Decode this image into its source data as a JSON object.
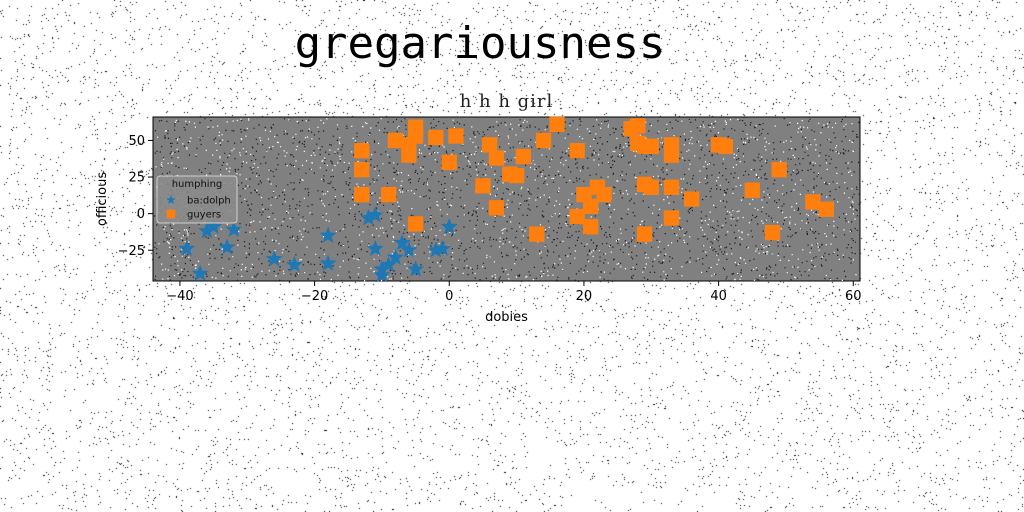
{
  "page": {
    "title": "gregariousness"
  },
  "chart_data": {
    "type": "scatter",
    "title": "h h h girl",
    "xlabel": "dobies",
    "ylabel": "officious",
    "xlim": [
      -44,
      61
    ],
    "ylim": [
      -46,
      66
    ],
    "xticks": [
      -40,
      -20,
      0,
      20,
      40,
      60
    ],
    "yticks": [
      -25,
      0,
      25,
      50
    ],
    "grid": false,
    "background": "#808080",
    "legend": {
      "title": "humphing",
      "placement": "left"
    },
    "series": [
      {
        "name": "ba:dolph",
        "marker": "star",
        "color": "#1f77b4",
        "points": [
          [
            -39,
            -24
          ],
          [
            -37,
            -41
          ],
          [
            -36,
            -12
          ],
          [
            -35,
            -9
          ],
          [
            -33,
            -23
          ],
          [
            -32,
            -11
          ],
          [
            -26,
            -31
          ],
          [
            -23,
            -35
          ],
          [
            -18,
            -15
          ],
          [
            -18,
            -34
          ],
          [
            -12,
            -3
          ],
          [
            -11,
            -1
          ],
          [
            -11,
            -24
          ],
          [
            -10,
            -42
          ],
          [
            -10,
            -38
          ],
          [
            -9,
            -35
          ],
          [
            -8,
            -30
          ],
          [
            -7,
            -20
          ],
          [
            -6,
            -25
          ],
          [
            -5,
            -38
          ],
          [
            -2,
            -25
          ],
          [
            -1,
            -24
          ],
          [
            0,
            -9
          ]
        ]
      },
      {
        "name": "guyers",
        "marker": "square",
        "color": "#ff7f0e",
        "points": [
          [
            -13,
            13
          ],
          [
            -13,
            30
          ],
          [
            -13,
            43
          ],
          [
            -9,
            13
          ],
          [
            -8,
            50
          ],
          [
            -6,
            40
          ],
          [
            -6,
            47
          ],
          [
            -5,
            53
          ],
          [
            -5,
            59
          ],
          [
            -5,
            -7
          ],
          [
            -2,
            52
          ],
          [
            0,
            35
          ],
          [
            1,
            53
          ],
          [
            5,
            19
          ],
          [
            6,
            47
          ],
          [
            7,
            38
          ],
          [
            7,
            4
          ],
          [
            9,
            27
          ],
          [
            10,
            26
          ],
          [
            11,
            39
          ],
          [
            13,
            -14
          ],
          [
            14,
            50
          ],
          [
            16,
            61
          ],
          [
            19,
            -2
          ],
          [
            19,
            43
          ],
          [
            20,
            13
          ],
          [
            21,
            -9
          ],
          [
            21,
            5
          ],
          [
            22,
            18
          ],
          [
            23,
            13
          ],
          [
            27,
            58
          ],
          [
            28,
            60
          ],
          [
            28,
            48
          ],
          [
            29,
            46
          ],
          [
            29,
            20
          ],
          [
            29,
            -14
          ],
          [
            30,
            46
          ],
          [
            30,
            18
          ],
          [
            33,
            18
          ],
          [
            33,
            -3
          ],
          [
            33,
            47
          ],
          [
            33,
            40
          ],
          [
            36,
            10
          ],
          [
            40,
            47
          ],
          [
            41,
            46
          ],
          [
            45,
            16
          ],
          [
            48,
            -13
          ],
          [
            49,
            30
          ],
          [
            54,
            8
          ],
          [
            56,
            3
          ]
        ]
      }
    ]
  }
}
